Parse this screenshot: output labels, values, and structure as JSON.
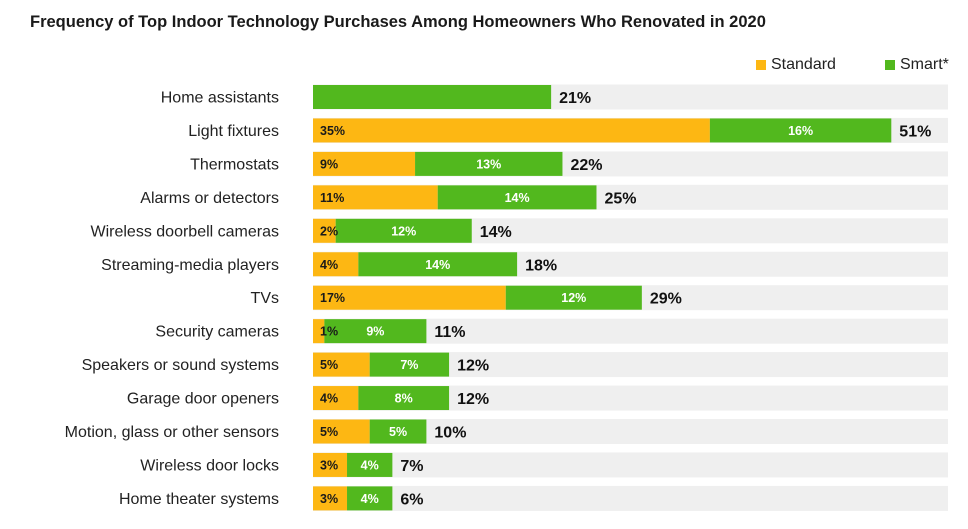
{
  "title": "Frequency of Top Indoor Technology Purchases Among Homeowners Who Renovated in 2020",
  "colors": {
    "standard": "#FDB713",
    "smart": "#52B81E",
    "track": "#EFEFEF",
    "label_on_standard": "#1a1a1a",
    "label_on_smart": "#ffffff"
  },
  "legend": [
    {
      "name": "Standard",
      "color": "#FDB713"
    },
    {
      "name": "Smart*",
      "color": "#52B81E"
    }
  ],
  "chart_data": {
    "type": "bar",
    "orientation": "horizontal",
    "stacked": true,
    "title": "Frequency of Top Indoor Technology Purchases Among Homeowners Who Renovated in 2020",
    "xlim": [
      0,
      56
    ],
    "legend_position": "top-right",
    "categories": [
      "Home assistants",
      "Light fixtures",
      "Thermostats",
      "Alarms or detectors",
      "Wireless doorbell cameras",
      "Streaming-media players",
      "TVs",
      "Security cameras",
      "Speakers or sound systems",
      "Garage door openers",
      "Motion, glass or other sensors",
      "Wireless door locks",
      "Home theater systems"
    ],
    "series": [
      {
        "name": "Standard",
        "values": [
          0,
          35,
          9,
          11,
          2,
          4,
          17,
          1,
          5,
          4,
          5,
          3,
          3
        ],
        "labels": [
          "",
          "35%",
          "9%",
          "11%",
          "2%",
          "4%",
          "17%",
          "1%",
          "5%",
          "4%",
          "5%",
          "3%",
          "3%"
        ]
      },
      {
        "name": "Smart*",
        "values": [
          21,
          16,
          13,
          14,
          12,
          14,
          12,
          9,
          7,
          8,
          5,
          4,
          4
        ],
        "labels": [
          "",
          "16%",
          "13%",
          "14%",
          "12%",
          "14%",
          "12%",
          "9%",
          "7%",
          "8%",
          "5%",
          "4%",
          "4%"
        ]
      }
    ],
    "totals": [
      21,
      51,
      22,
      25,
      14,
      18,
      29,
      11,
      12,
      12,
      10,
      7,
      6
    ],
    "total_labels": [
      "21%",
      "51%",
      "22%",
      "25%",
      "14%",
      "18%",
      "29%",
      "11%",
      "12%",
      "12%",
      "10%",
      "7%",
      "6%"
    ]
  }
}
